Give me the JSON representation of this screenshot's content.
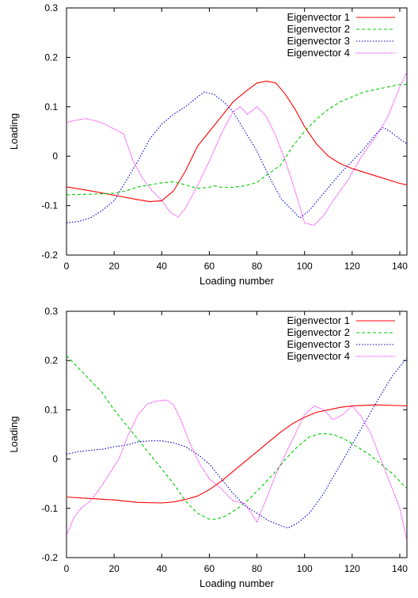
{
  "chart_data": [
    {
      "type": "line",
      "title": "",
      "xlabel": "Loading number",
      "ylabel": "Loading",
      "xlim": [
        0,
        143
      ],
      "ylim": [
        -0.2,
        0.3
      ],
      "xticks": [
        "0",
        "20",
        "40",
        "60",
        "80",
        "100",
        "120",
        "140"
      ],
      "yticks": [
        "-0.2",
        "-0.1",
        "0",
        "0.1",
        "0.2",
        "0.3"
      ],
      "legend_position": "top-right",
      "grid": false,
      "series": [
        {
          "name": "Eigenvector 1",
          "color": "#ff0000",
          "dash": "solid",
          "points": [
            [
              0,
              -0.062
            ],
            [
              10,
              -0.07
            ],
            [
              20,
              -0.079
            ],
            [
              30,
              -0.088
            ],
            [
              35,
              -0.092
            ],
            [
              40,
              -0.09
            ],
            [
              45,
              -0.07
            ],
            [
              50,
              -0.03
            ],
            [
              55,
              0.02
            ],
            [
              60,
              0.05
            ],
            [
              65,
              0.08
            ],
            [
              70,
              0.11
            ],
            [
              75,
              0.13
            ],
            [
              80,
              0.148
            ],
            [
              84,
              0.152
            ],
            [
              88,
              0.148
            ],
            [
              92,
              0.125
            ],
            [
              96,
              0.095
            ],
            [
              100,
              0.06
            ],
            [
              105,
              0.025
            ],
            [
              110,
              0.0
            ],
            [
              115,
              -0.015
            ],
            [
              120,
              -0.025
            ],
            [
              130,
              -0.04
            ],
            [
              140,
              -0.055
            ],
            [
              143,
              -0.058
            ]
          ]
        },
        {
          "name": "Eigenvector 2",
          "color": "#00cc00",
          "dash": "dashed",
          "points": [
            [
              0,
              -0.078
            ],
            [
              10,
              -0.077
            ],
            [
              20,
              -0.075
            ],
            [
              25,
              -0.07
            ],
            [
              30,
              -0.062
            ],
            [
              35,
              -0.058
            ],
            [
              40,
              -0.054
            ],
            [
              45,
              -0.052
            ],
            [
              50,
              -0.058
            ],
            [
              55,
              -0.065
            ],
            [
              60,
              -0.063
            ],
            [
              62,
              -0.06
            ],
            [
              65,
              -0.063
            ],
            [
              70,
              -0.063
            ],
            [
              75,
              -0.06
            ],
            [
              80,
              -0.053
            ],
            [
              85,
              -0.035
            ],
            [
              90,
              -0.018
            ],
            [
              95,
              0.02
            ],
            [
              100,
              0.05
            ],
            [
              105,
              0.075
            ],
            [
              110,
              0.095
            ],
            [
              115,
              0.11
            ],
            [
              120,
              0.12
            ],
            [
              125,
              0.13
            ],
            [
              130,
              0.135
            ],
            [
              135,
              0.14
            ],
            [
              140,
              0.145
            ],
            [
              143,
              0.145
            ]
          ]
        },
        {
          "name": "Eigenvector 3",
          "color": "#0000cc",
          "dash": "dotted",
          "points": [
            [
              0,
              -0.135
            ],
            [
              5,
              -0.132
            ],
            [
              10,
              -0.125
            ],
            [
              15,
              -0.11
            ],
            [
              20,
              -0.09
            ],
            [
              25,
              -0.05
            ],
            [
              30,
              -0.01
            ],
            [
              35,
              0.035
            ],
            [
              40,
              0.065
            ],
            [
              45,
              0.085
            ],
            [
              50,
              0.1
            ],
            [
              55,
              0.12
            ],
            [
              58,
              0.13
            ],
            [
              62,
              0.125
            ],
            [
              66,
              0.11
            ],
            [
              70,
              0.09
            ],
            [
              75,
              0.05
            ],
            [
              80,
              0.01
            ],
            [
              85,
              -0.04
            ],
            [
              90,
              -0.085
            ],
            [
              95,
              -0.11
            ],
            [
              98,
              -0.125
            ],
            [
              102,
              -0.11
            ],
            [
              108,
              -0.075
            ],
            [
              115,
              -0.035
            ],
            [
              120,
              -0.01
            ],
            [
              125,
              0.015
            ],
            [
              130,
              0.045
            ],
            [
              133,
              0.058
            ],
            [
              136,
              0.05
            ],
            [
              140,
              0.035
            ],
            [
              143,
              0.025
            ]
          ]
        },
        {
          "name": "Eigenvector 4",
          "color": "#ee00ee",
          "dash": "finedot",
          "points": [
            [
              0,
              0.068
            ],
            [
              3,
              0.072
            ],
            [
              8,
              0.076
            ],
            [
              12,
              0.072
            ],
            [
              16,
              0.065
            ],
            [
              20,
              0.055
            ],
            [
              24,
              0.045
            ],
            [
              28,
              -0.01
            ],
            [
              32,
              -0.045
            ],
            [
              36,
              -0.07
            ],
            [
              40,
              -0.09
            ],
            [
              44,
              -0.115
            ],
            [
              47,
              -0.123
            ],
            [
              50,
              -0.105
            ],
            [
              55,
              -0.06
            ],
            [
              60,
              -0.01
            ],
            [
              65,
              0.045
            ],
            [
              70,
              0.09
            ],
            [
              73,
              0.1
            ],
            [
              76,
              0.085
            ],
            [
              80,
              0.1
            ],
            [
              84,
              0.08
            ],
            [
              88,
              0.04
            ],
            [
              92,
              -0.01
            ],
            [
              96,
              -0.07
            ],
            [
              100,
              -0.135
            ],
            [
              104,
              -0.14
            ],
            [
              108,
              -0.12
            ],
            [
              112,
              -0.09
            ],
            [
              118,
              -0.05
            ],
            [
              124,
              0.0
            ],
            [
              130,
              0.04
            ],
            [
              135,
              0.08
            ],
            [
              140,
              0.14
            ],
            [
              143,
              0.17
            ]
          ]
        }
      ]
    },
    {
      "type": "line",
      "title": "",
      "xlabel": "Loading number",
      "ylabel": "Loading",
      "xlim": [
        0,
        143
      ],
      "ylim": [
        -0.2,
        0.3
      ],
      "xticks": [
        "0",
        "20",
        "40",
        "60",
        "80",
        "100",
        "120",
        "140"
      ],
      "yticks": [
        "-0.2",
        "-0.1",
        "0",
        "0.1",
        "0.2",
        "0.3"
      ],
      "legend_position": "top-right",
      "grid": false,
      "series": [
        {
          "name": "Eigenvector 1",
          "color": "#ff0000",
          "dash": "solid",
          "points": [
            [
              0,
              -0.077
            ],
            [
              10,
              -0.08
            ],
            [
              20,
              -0.083
            ],
            [
              30,
              -0.088
            ],
            [
              40,
              -0.089
            ],
            [
              45,
              -0.087
            ],
            [
              50,
              -0.082
            ],
            [
              55,
              -0.075
            ],
            [
              60,
              -0.062
            ],
            [
              65,
              -0.045
            ],
            [
              70,
              -0.025
            ],
            [
              75,
              -0.005
            ],
            [
              80,
              0.015
            ],
            [
              85,
              0.035
            ],
            [
              90,
              0.055
            ],
            [
              95,
              0.072
            ],
            [
              100,
              0.085
            ],
            [
              105,
              0.095
            ],
            [
              110,
              0.1
            ],
            [
              115,
              0.105
            ],
            [
              120,
              0.108
            ],
            [
              130,
              0.11
            ],
            [
              143,
              0.108
            ]
          ]
        },
        {
          "name": "Eigenvector 2",
          "color": "#00cc00",
          "dash": "dashed",
          "points": [
            [
              0,
              0.21
            ],
            [
              5,
              0.185
            ],
            [
              10,
              0.16
            ],
            [
              15,
              0.135
            ],
            [
              20,
              0.1
            ],
            [
              25,
              0.07
            ],
            [
              30,
              0.04
            ],
            [
              35,
              0.01
            ],
            [
              40,
              -0.02
            ],
            [
              45,
              -0.05
            ],
            [
              50,
              -0.085
            ],
            [
              55,
              -0.11
            ],
            [
              60,
              -0.122
            ],
            [
              63,
              -0.122
            ],
            [
              67,
              -0.115
            ],
            [
              72,
              -0.1
            ],
            [
              77,
              -0.08
            ],
            [
              82,
              -0.055
            ],
            [
              87,
              -0.03
            ],
            [
              92,
              0.0
            ],
            [
              97,
              0.025
            ],
            [
              102,
              0.045
            ],
            [
              107,
              0.052
            ],
            [
              112,
              0.05
            ],
            [
              117,
              0.04
            ],
            [
              122,
              0.025
            ],
            [
              127,
              0.01
            ],
            [
              132,
              -0.01
            ],
            [
              137,
              -0.03
            ],
            [
              143,
              -0.06
            ]
          ]
        },
        {
          "name": "Eigenvector 3",
          "color": "#0000cc",
          "dash": "dotted",
          "points": [
            [
              0,
              0.01
            ],
            [
              5,
              0.015
            ],
            [
              10,
              0.018
            ],
            [
              15,
              0.02
            ],
            [
              20,
              0.025
            ],
            [
              25,
              0.028
            ],
            [
              30,
              0.035
            ],
            [
              35,
              0.037
            ],
            [
              40,
              0.037
            ],
            [
              45,
              0.033
            ],
            [
              50,
              0.025
            ],
            [
              55,
              0.01
            ],
            [
              60,
              -0.01
            ],
            [
              65,
              -0.04
            ],
            [
              70,
              -0.07
            ],
            [
              75,
              -0.095
            ],
            [
              80,
              -0.11
            ],
            [
              85,
              -0.125
            ],
            [
              90,
              -0.135
            ],
            [
              93,
              -0.14
            ],
            [
              97,
              -0.13
            ],
            [
              102,
              -0.11
            ],
            [
              108,
              -0.07
            ],
            [
              114,
              -0.02
            ],
            [
              120,
              0.03
            ],
            [
              126,
              0.08
            ],
            [
              132,
              0.13
            ],
            [
              137,
              0.17
            ],
            [
              143,
              0.205
            ]
          ]
        },
        {
          "name": "Eigenvector 4",
          "color": "#ee00ee",
          "dash": "finedot",
          "points": [
            [
              0,
              -0.155
            ],
            [
              3,
              -0.12
            ],
            [
              6,
              -0.1
            ],
            [
              10,
              -0.085
            ],
            [
              14,
              -0.06
            ],
            [
              18,
              -0.03
            ],
            [
              22,
              0.0
            ],
            [
              26,
              0.05
            ],
            [
              30,
              0.09
            ],
            [
              34,
              0.112
            ],
            [
              38,
              0.118
            ],
            [
              42,
              0.12
            ],
            [
              45,
              0.11
            ],
            [
              48,
              0.08
            ],
            [
              52,
              0.03
            ],
            [
              56,
              -0.01
            ],
            [
              60,
              -0.04
            ],
            [
              65,
              -0.06
            ],
            [
              70,
              -0.085
            ],
            [
              75,
              -0.09
            ],
            [
              80,
              -0.128
            ],
            [
              84,
              -0.08
            ],
            [
              88,
              -0.03
            ],
            [
              92,
              0.01
            ],
            [
              96,
              0.05
            ],
            [
              100,
              0.09
            ],
            [
              104,
              0.108
            ],
            [
              108,
              0.1
            ],
            [
              112,
              0.08
            ],
            [
              116,
              0.09
            ],
            [
              120,
              0.108
            ],
            [
              124,
              0.085
            ],
            [
              128,
              0.05
            ],
            [
              132,
              0.0
            ],
            [
              136,
              -0.05
            ],
            [
              140,
              -0.1
            ],
            [
              143,
              -0.165
            ]
          ]
        }
      ]
    }
  ]
}
